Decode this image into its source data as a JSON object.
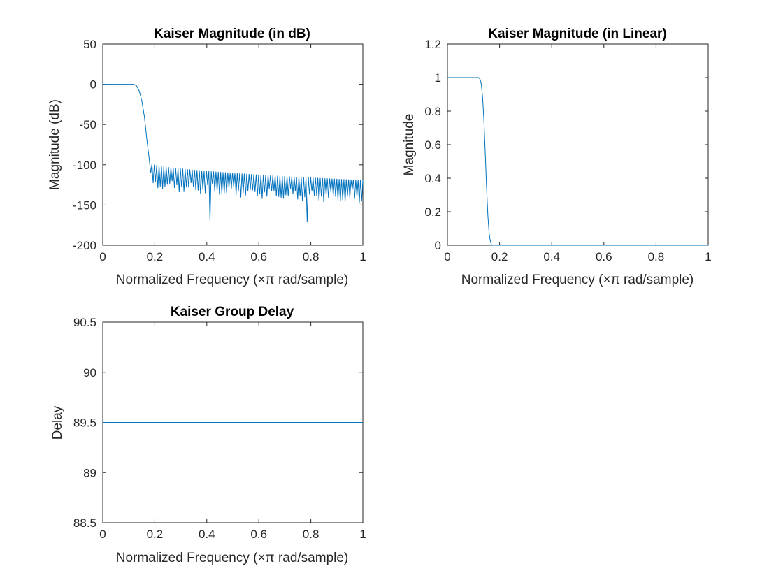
{
  "chart_data": [
    {
      "type": "line",
      "title": "Kaiser Magnitude (in dB)",
      "xlabel": "Normalized Frequency (×π rad/sample)",
      "ylabel": "Magnitude (dB)",
      "xlim": [
        0,
        1
      ],
      "ylim": [
        -200,
        50
      ],
      "xticks": [
        0,
        0.2,
        0.4,
        0.6,
        0.8,
        1
      ],
      "xtick_labels": [
        "0",
        "0.2",
        "0.4",
        "0.6",
        "0.8",
        "1"
      ],
      "yticks": [
        -200,
        -150,
        -100,
        -50,
        0,
        50
      ],
      "ytick_labels": [
        "-200",
        "-150",
        "-100",
        "-50",
        "0",
        "50"
      ],
      "grid": false,
      "color": "#0072BD",
      "series": [
        {
          "x": [
            0,
            0.12,
            0.13,
            0.14,
            0.15,
            0.16,
            0.17,
            0.18,
            0.185,
            0.19,
            0.2,
            0.25,
            0.3,
            0.35,
            0.4,
            0.412,
            0.45,
            0.5,
            0.55,
            0.6,
            0.7,
            0.785,
            0.8,
            0.9,
            1.0
          ],
          "y": [
            0,
            0,
            -2,
            -8,
            -20,
            -40,
            -70,
            -96,
            -115,
            -100,
            -102,
            -107,
            -112,
            -114,
            -116,
            -170,
            -117,
            -118,
            -118,
            -119,
            -119,
            -171,
            -119,
            -120,
            -120
          ],
          "ripple_floor": [
            -118,
            -160
          ]
        }
      ]
    },
    {
      "type": "line",
      "title": "Kaiser Magnitude (in Linear)",
      "xlabel": "Normalized Frequency (×π rad/sample)",
      "ylabel": "Magnitude",
      "xlim": [
        0,
        1
      ],
      "ylim": [
        0,
        1.2
      ],
      "xticks": [
        0,
        0.2,
        0.4,
        0.6,
        0.8,
        1
      ],
      "xtick_labels": [
        "0",
        "0.2",
        "0.4",
        "0.6",
        "0.8",
        "1"
      ],
      "yticks": [
        0,
        0.2,
        0.4,
        0.6,
        0.8,
        1,
        1.2
      ],
      "ytick_labels": [
        "0",
        "0.2",
        "0.4",
        "0.6",
        "0.8",
        "1",
        "1.2"
      ],
      "grid": false,
      "color": "#0072BD",
      "series": [
        {
          "x": [
            0,
            0.12,
            0.125,
            0.13,
            0.135,
            0.14,
            0.145,
            0.15,
            0.155,
            0.16,
            0.165,
            0.17,
            0.18,
            1.0
          ],
          "y": [
            1,
            1,
            0.99,
            0.96,
            0.88,
            0.74,
            0.55,
            0.35,
            0.18,
            0.07,
            0.02,
            0.0,
            0.0,
            0.0
          ]
        }
      ]
    },
    {
      "type": "line",
      "title": "Kaiser Group Delay",
      "xlabel": "Normalized Frequency (×π rad/sample)",
      "ylabel": "Delay",
      "xlim": [
        0,
        1
      ],
      "ylim": [
        88.5,
        90.5
      ],
      "xticks": [
        0,
        0.2,
        0.4,
        0.6,
        0.8,
        1
      ],
      "xtick_labels": [
        "0",
        "0.2",
        "0.4",
        "0.6",
        "0.8",
        "1"
      ],
      "yticks": [
        88.5,
        89,
        89.5,
        90,
        90.5
      ],
      "ytick_labels": [
        "88.5",
        "89",
        "89.5",
        "90",
        "90.5"
      ],
      "grid": false,
      "color": "#0072BD",
      "series": [
        {
          "x": [
            0,
            1
          ],
          "y": [
            89.5,
            89.5
          ]
        }
      ]
    }
  ]
}
